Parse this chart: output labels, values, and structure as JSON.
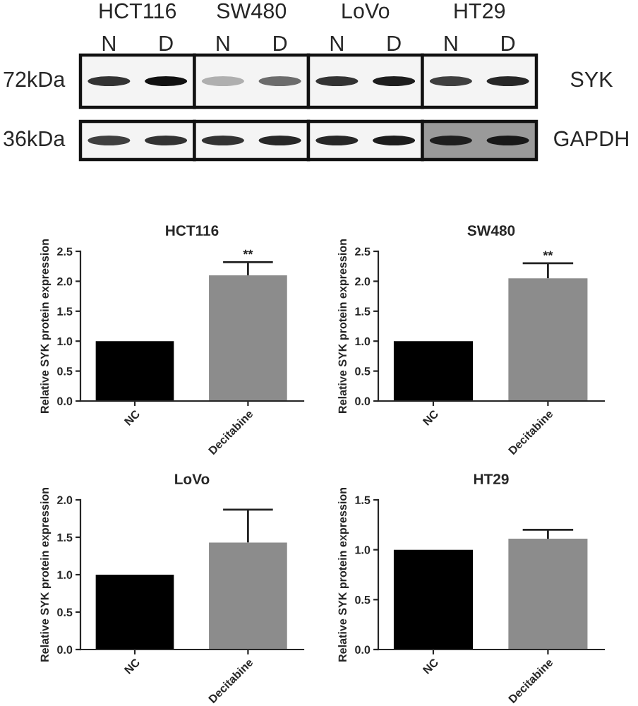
{
  "chart_data": [
    {
      "type": "other",
      "categories": [
        "HCT116",
        "SW480",
        "LoVo",
        "HT29"
      ],
      "annotations": [
        "N",
        "D",
        "N",
        "D",
        "N",
        "D",
        "N",
        "D"
      ],
      "y_categories": [
        "72kDa",
        "36kDa"
      ],
      "y2_categories": [
        "SYK",
        "GAPDH"
      ]
    },
    {
      "type": "bar",
      "title": "HCT116",
      "ylabel": "Relative SYK protein expression",
      "categories": [
        "NC",
        "Decitabine"
      ],
      "values": [
        1.0,
        2.1
      ],
      "colors": [
        "#000000",
        "#8c8c8c"
      ],
      "errors": [
        null,
        [
          2.1,
          2.32
        ]
      ],
      "ylim": [
        0,
        2.5
      ],
      "yticks": [
        {
          "value": 0,
          "label": "0.0"
        },
        0.5,
        {
          "value": 1,
          "label": "1.0"
        },
        1.5,
        {
          "value": 2,
          "label": "2.0"
        },
        2.5
      ],
      "annotations": [
        {
          "text": "**",
          "x": "Decitabine",
          "y": 2.32
        }
      ]
    },
    {
      "type": "bar",
      "title": "SW480",
      "ylabel": "Relative SYK protein expression",
      "categories": [
        "NC",
        "Decitabine"
      ],
      "values": [
        1.0,
        2.05
      ],
      "colors": [
        "#000000",
        "#8c8c8c"
      ],
      "errors": [
        null,
        [
          2.05,
          2.3
        ]
      ],
      "ylim": [
        0,
        2.5
      ],
      "yticks": [
        {
          "value": 0,
          "label": "0.0"
        },
        0.5,
        {
          "value": 1,
          "label": "1.0"
        },
        1.5,
        {
          "value": 2,
          "label": "2.0"
        },
        2.5
      ],
      "annotations": [
        {
          "text": "**",
          "x": "Decitabine",
          "y": 2.3
        }
      ]
    },
    {
      "type": "bar",
      "title": "LoVo",
      "ylabel": "Relative SYK protein expression",
      "categories": [
        "NC",
        "Decitabine"
      ],
      "values": [
        1.0,
        1.43
      ],
      "colors": [
        "#000000",
        "#8c8c8c"
      ],
      "errors": [
        null,
        [
          1.43,
          1.87
        ]
      ],
      "ylim": [
        0,
        2.0
      ],
      "yticks": [
        {
          "value": 0,
          "label": "0.0"
        },
        0.5,
        {
          "value": 1,
          "label": "1.0"
        },
        1.5,
        {
          "value": 2,
          "label": "2.0"
        }
      ]
    },
    {
      "type": "bar",
      "title": "HT29",
      "ylabel": "Relative SYK protein expression",
      "categories": [
        "NC",
        "Decitabine"
      ],
      "values": [
        1.0,
        1.11
      ],
      "colors": [
        "#000000",
        "#8c8c8c"
      ],
      "errors": [
        null,
        [
          1.11,
          1.2
        ]
      ],
      "ylim": [
        0,
        1.5
      ],
      "yticks": [
        {
          "value": 0,
          "label": "0.0"
        },
        0.5,
        {
          "value": 1,
          "label": "1.0"
        },
        1.5
      ]
    }
  ]
}
